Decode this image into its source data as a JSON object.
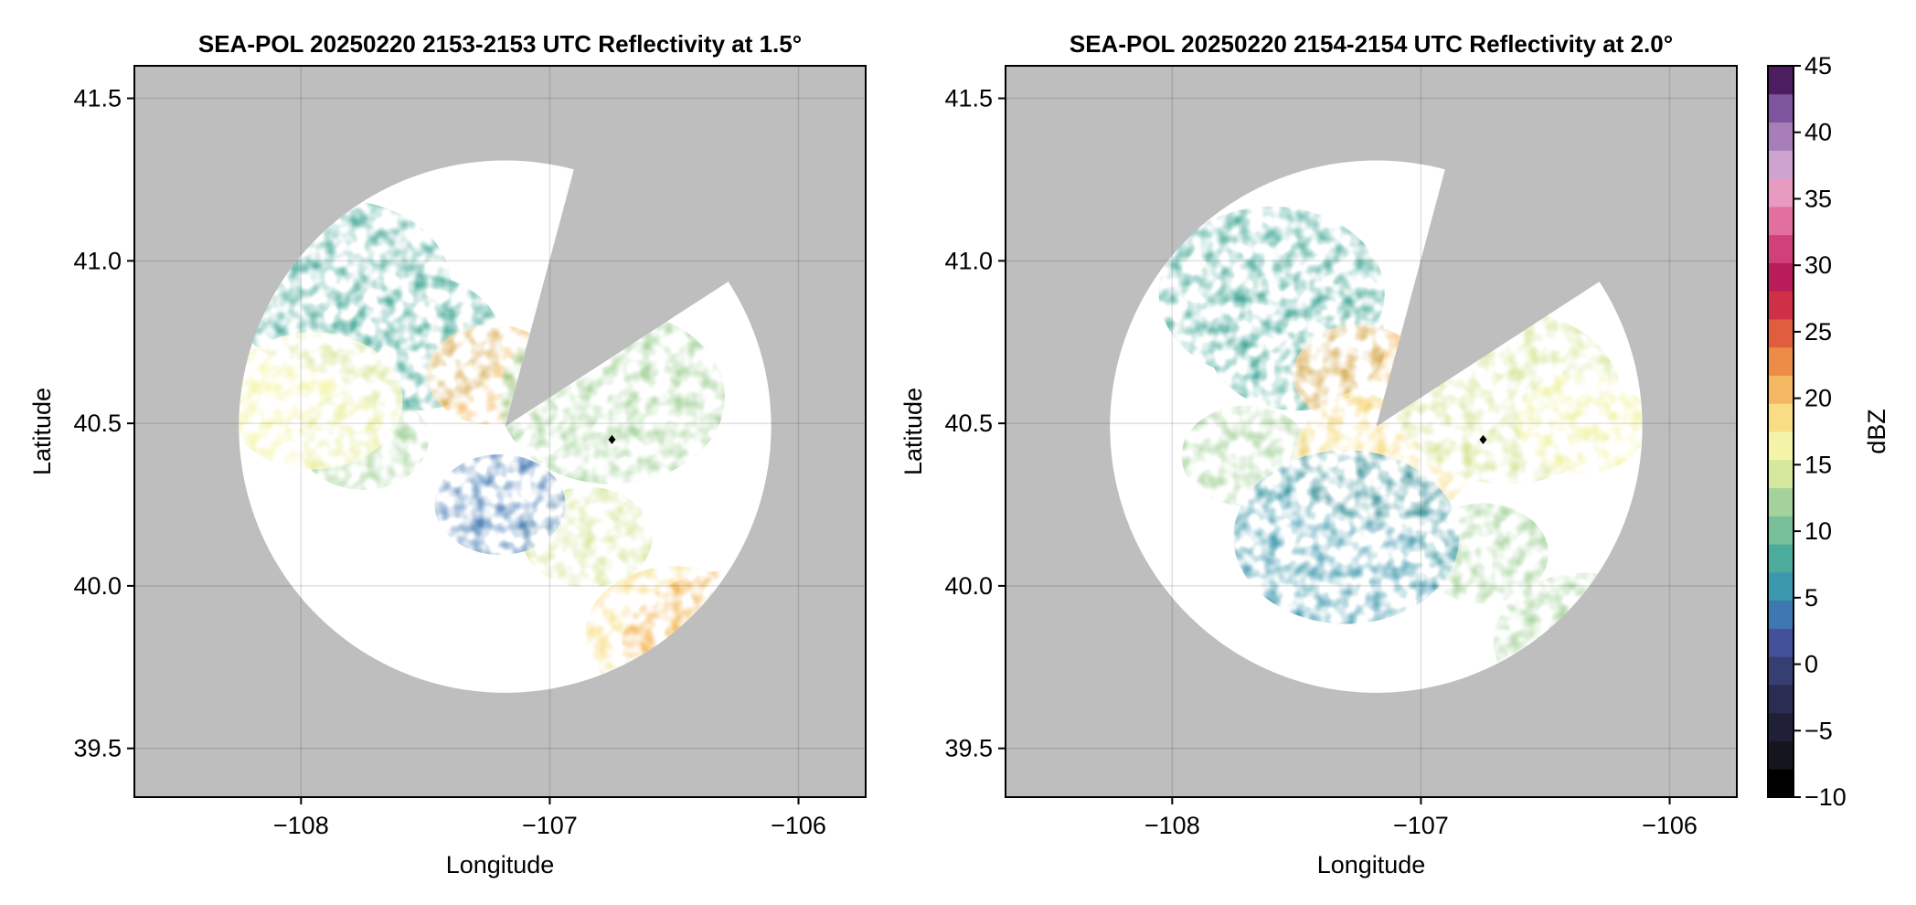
{
  "chart_data": [
    {
      "type": "heatmap",
      "title": "SEA-POL 20250220 2153-2153 UTC Reflectivity at 1.5°",
      "xlabel": "Longitude",
      "ylabel": "Latitude",
      "xlim": [
        -108.67,
        -105.73
      ],
      "ylim": [
        39.35,
        41.6
      ],
      "xticks": [
        -108,
        -107,
        -106
      ],
      "xtick_labels": [
        "−108",
        "−107",
        "−106"
      ],
      "yticks": [
        39.5,
        40.0,
        40.5,
        41.0,
        41.5
      ],
      "ytick_labels": [
        "39.5",
        "40.0",
        "40.5",
        "41.0",
        "41.5"
      ],
      "grid": true,
      "background_color": "#bebebe",
      "radar": {
        "lon": -107.18,
        "lat": 40.49,
        "range_deg": 1.07,
        "blocked_sector_az_deg": [
          15,
          57
        ]
      },
      "marker": {
        "lon": -106.75,
        "lat": 40.45,
        "symbol": "diamond"
      },
      "echoes": [
        {
          "region": "western mass",
          "lon": -107.75,
          "lat": 40.45,
          "dbz": 17
        },
        {
          "region": "north band",
          "lon": -107.55,
          "lat": 40.75,
          "dbz": 10
        },
        {
          "region": "northwest cells",
          "lon": -107.85,
          "lat": 40.92,
          "dbz": 12
        },
        {
          "region": "core near radar",
          "lon": -107.23,
          "lat": 40.65,
          "dbz": 25
        },
        {
          "region": "core west",
          "lon": -107.95,
          "lat": 40.57,
          "dbz": 22
        },
        {
          "region": "east spokes",
          "lon": -106.75,
          "lat": 40.58,
          "dbz": 15
        },
        {
          "region": "southeast band",
          "lon": -106.85,
          "lat": 40.15,
          "dbz": 18
        },
        {
          "region": "southeast cell",
          "lon": -106.5,
          "lat": 39.85,
          "dbz": 24
        },
        {
          "region": "far southeast cell",
          "lon": -106.27,
          "lat": 39.78,
          "dbz": 25
        },
        {
          "region": "south radials",
          "lon": -107.2,
          "lat": 40.25,
          "dbz": 5
        }
      ]
    },
    {
      "type": "heatmap",
      "title": "SEA-POL 20250220 2154-2154 UTC Reflectivity at 2.0°",
      "xlabel": "Longitude",
      "ylabel": "Latitude",
      "xlim": [
        -108.67,
        -105.73
      ],
      "ylim": [
        39.35,
        41.6
      ],
      "xticks": [
        -108,
        -107,
        -106
      ],
      "xtick_labels": [
        "−108",
        "−107",
        "−106"
      ],
      "yticks": [
        39.5,
        40.0,
        40.5,
        41.0,
        41.5
      ],
      "ytick_labels": [
        "39.5",
        "40.0",
        "40.5",
        "41.0",
        "41.5"
      ],
      "grid": true,
      "background_color": "#bebebe",
      "radar": {
        "lon": -107.18,
        "lat": 40.49,
        "range_deg": 1.07,
        "blocked_sector_az_deg": [
          15,
          57
        ]
      },
      "marker": {
        "lon": -106.75,
        "lat": 40.45,
        "symbol": "diamond"
      },
      "echoes": [
        {
          "region": "western mass",
          "lon": -107.7,
          "lat": 40.4,
          "dbz": 16
        },
        {
          "region": "north band",
          "lon": -107.5,
          "lat": 40.75,
          "dbz": 11
        },
        {
          "region": "northwest cells",
          "lon": -107.6,
          "lat": 40.9,
          "dbz": 12
        },
        {
          "region": "core near radar",
          "lon": -107.25,
          "lat": 40.65,
          "dbz": 26
        },
        {
          "region": "core near radar south",
          "lon": -107.15,
          "lat": 40.4,
          "dbz": 24
        },
        {
          "region": "east spokes",
          "lon": -106.65,
          "lat": 40.58,
          "dbz": 18
        },
        {
          "region": "southeast band",
          "lon": -106.75,
          "lat": 40.1,
          "dbz": 17
        },
        {
          "region": "southeast cell",
          "lon": -106.35,
          "lat": 39.83,
          "dbz": 16
        },
        {
          "region": "south radials",
          "lon": -107.3,
          "lat": 40.15,
          "dbz": 8
        },
        {
          "region": "far east cells",
          "lon": -106.35,
          "lat": 40.5,
          "dbz": 20
        }
      ]
    }
  ],
  "colorbar": {
    "label": "dBZ",
    "min": -10,
    "max": 45,
    "step": 2.5,
    "tick_values": [
      -10,
      -5,
      0,
      5,
      10,
      15,
      20,
      25,
      30,
      35,
      40,
      45
    ],
    "tick_labels": [
      "−10",
      "−5",
      "0",
      "5",
      "10",
      "15",
      "20",
      "25",
      "30",
      "35",
      "40",
      "45"
    ],
    "colors": [
      "#000000",
      "#15151e",
      "#1f2038",
      "#2a2c52",
      "#373e72",
      "#42519a",
      "#3f77b2",
      "#3b97ab",
      "#4cac9c",
      "#76bf9a",
      "#a5d29a",
      "#d6e89d",
      "#f4f4a8",
      "#f8dd85",
      "#f4b862",
      "#ec8c46",
      "#e05d3d",
      "#d02f48",
      "#b81c5a",
      "#d1407a",
      "#e36fa0",
      "#e89ac0",
      "#cfa3cf",
      "#a77eb8",
      "#7d559d",
      "#4c1e60"
    ]
  }
}
